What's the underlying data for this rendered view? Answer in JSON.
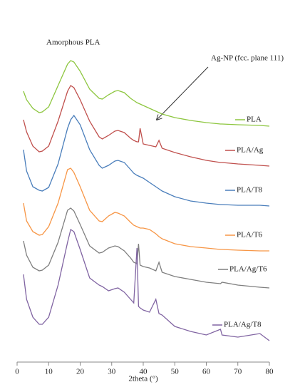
{
  "chart_data": {
    "type": "line",
    "xlabel": "2theta (°)",
    "annotations": [
      "Amorphous PLA",
      "Ag-NP (fcc. plane 111)"
    ],
    "xlim": [
      0,
      80
    ],
    "xticks": [
      0,
      10,
      20,
      30,
      40,
      50,
      60,
      70,
      80
    ],
    "ylim": [
      0,
      470
    ],
    "x": [
      2,
      3,
      5,
      7,
      8,
      10,
      13,
      16,
      17,
      18,
      20,
      23,
      26,
      27,
      29,
      31,
      32,
      34,
      36,
      37,
      38,
      38.5,
      39,
      40,
      42,
      44,
      45,
      46,
      50,
      55,
      60,
      64.5,
      65,
      70,
      77,
      80
    ],
    "series": [
      {
        "name": "PLA",
        "color": "#8dc63f",
        "values": [
          380,
          368,
          356,
          350,
          351,
          358,
          388,
          418,
          423,
          421,
          408,
          383,
          370,
          369,
          375,
          380,
          381,
          378,
          370,
          367,
          364,
          363,
          362,
          360,
          356,
          352,
          350,
          348,
          343,
          339,
          336,
          334,
          334,
          333,
          332,
          331
        ]
      },
      {
        "name": "PLA/Ag",
        "color": "#c0504d",
        "values": [
          340,
          323,
          303,
          295,
          296,
          303,
          338,
          380,
          388,
          385,
          368,
          338,
          316,
          313,
          318,
          324,
          325,
          322,
          314,
          311,
          309,
          309,
          328,
          306,
          304,
          302,
          311,
          300,
          294,
          288,
          283,
          280,
          280,
          278,
          276,
          275
        ]
      },
      {
        "name": "PLA/T8",
        "color": "#4a7ebb",
        "values": [
          298,
          268,
          246,
          241,
          240,
          245,
          278,
          328,
          340,
          346,
          333,
          298,
          276,
          272,
          276,
          282,
          283,
          280,
          270,
          265,
          262,
          261,
          260,
          258,
          252,
          246,
          243,
          240,
          232,
          226,
          223,
          221,
          221,
          220,
          220,
          219
        ]
      },
      {
        "name": "PLA/T6",
        "color": "#f79646",
        "values": [
          223,
          198,
          183,
          178,
          179,
          190,
          223,
          270,
          272,
          266,
          246,
          213,
          198,
          197,
          205,
          210,
          209,
          205,
          196,
          192,
          190,
          189,
          188,
          188,
          186,
          180,
          176,
          173,
          166,
          162,
          160,
          158,
          158,
          157,
          156,
          156
        ]
      },
      {
        "name": "PLA/Ag/T6",
        "color": "#7f7f7f",
        "values": [
          170,
          150,
          133,
          128,
          129,
          136,
          168,
          213,
          216,
          212,
          193,
          163,
          153,
          154,
          160,
          163,
          162,
          156,
          146,
          140,
          138,
          166,
          136,
          134,
          132,
          128,
          140,
          126,
          120,
          116,
          112,
          110,
          112,
          108,
          105,
          104
        ]
      },
      {
        "name": "PLA/Ag/T8",
        "color": "#8064a2",
        "values": [
          123,
          88,
          63,
          53,
          53,
          63,
          108,
          168,
          186,
          183,
          158,
          118,
          108,
          106,
          100,
          103,
          104,
          98,
          88,
          83,
          160,
          78,
          76,
          73,
          70,
          88,
          68,
          66,
          50,
          43,
          38,
          46,
          38,
          35,
          40,
          30
        ]
      }
    ]
  }
}
